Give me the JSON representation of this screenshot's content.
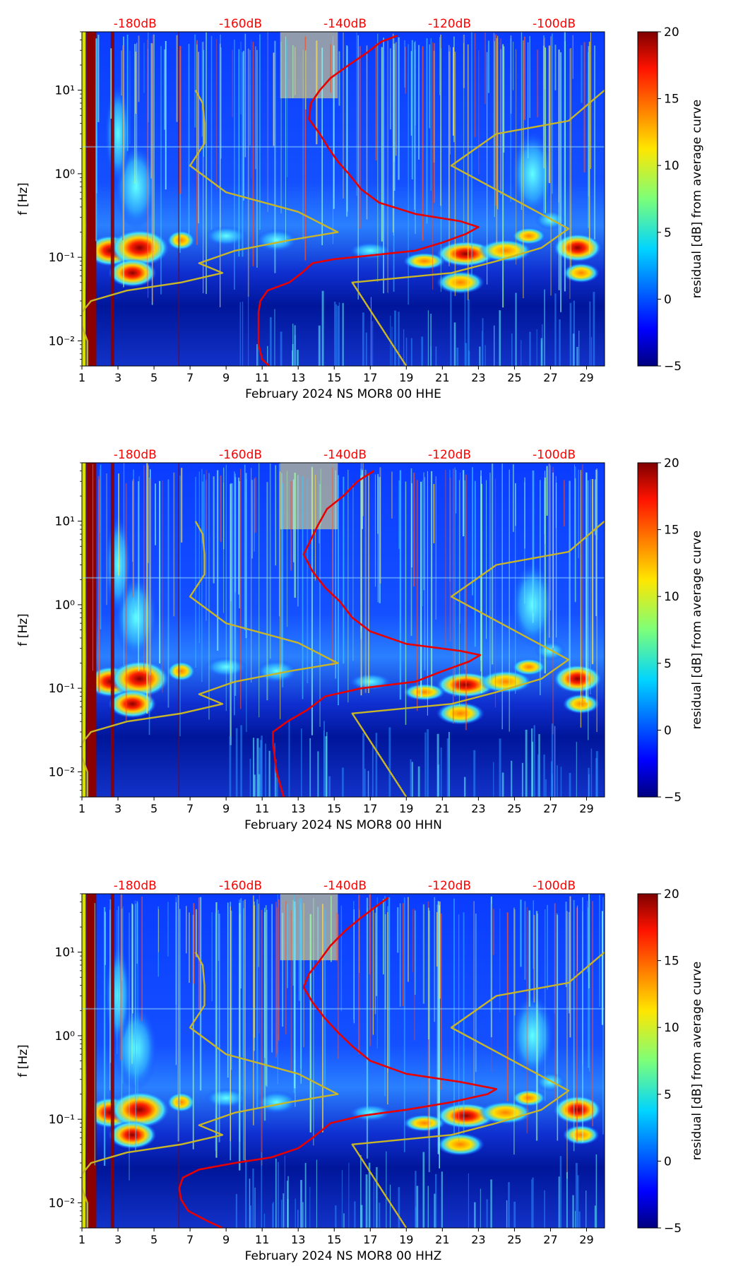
{
  "figure": {
    "colorbar": {
      "label": "residual [dB] from average curve",
      "ticks": [
        -5,
        0,
        5,
        10,
        15,
        20
      ],
      "range": [
        -5,
        20
      ]
    },
    "top_axis": {
      "labels": [
        "-180dB",
        "-160dB",
        "-140dB",
        "-120dB",
        "-100dB"
      ],
      "color": "#ff0000"
    },
    "y_tick_labels": [
      "10⁻²",
      "10⁻¹",
      "10⁰",
      "10¹"
    ],
    "x_tick_labels": [
      "1",
      "3",
      "5",
      "7",
      "9",
      "11",
      "13",
      "15",
      "17",
      "19",
      "21",
      "23",
      "25",
      "27",
      "29"
    ],
    "ylabel": "f [Hz]",
    "colors": {
      "median_curve": "#e80000",
      "noise_model": "#c8b628"
    }
  },
  "chart_data": [
    {
      "type": "heatmap",
      "title": "",
      "xlabel": "February 2024 NS MOR8 00 HHE",
      "ylabel": "f [Hz]",
      "xlim": [
        1,
        30
      ],
      "ylim": [
        0.005,
        50
      ],
      "yscale": "log",
      "colorbar_label": "residual [dB] from average curve",
      "zlim": [
        -5,
        20
      ],
      "series": [
        {
          "name": "median PSD (red)",
          "color": "#e80000",
          "points": [
            [
              11.4,
              0.005
            ],
            [
              11.0,
              0.006
            ],
            [
              10.8,
              0.009
            ],
            [
              10.8,
              0.015
            ],
            [
              10.8,
              0.022
            ],
            [
              10.9,
              0.03
            ],
            [
              11.3,
              0.04
            ],
            [
              12.5,
              0.05
            ],
            [
              13.2,
              0.065
            ],
            [
              13.8,
              0.085
            ],
            [
              15.0,
              0.095
            ],
            [
              17.0,
              0.105
            ],
            [
              19.5,
              0.12
            ],
            [
              21.0,
              0.15
            ],
            [
              22.3,
              0.19
            ],
            [
              23.0,
              0.23
            ],
            [
              22.0,
              0.27
            ],
            [
              19.5,
              0.33
            ],
            [
              17.5,
              0.45
            ],
            [
              16.5,
              0.65
            ],
            [
              15.8,
              1.0
            ],
            [
              15.2,
              1.4
            ],
            [
              14.7,
              2.0
            ],
            [
              14.2,
              3.0
            ],
            [
              13.6,
              4.5
            ],
            [
              13.7,
              7.0
            ],
            [
              14.2,
              10.0
            ],
            [
              14.8,
              14.0
            ],
            [
              15.8,
              20.0
            ],
            [
              16.8,
              28.0
            ],
            [
              17.6,
              38.0
            ],
            [
              18.5,
              45.0
            ]
          ]
        },
        {
          "name": "noise model (yellow)",
          "color": "#c8b628",
          "points": [
            [
              1.3,
              0.005
            ],
            [
              1.3,
              0.01
            ],
            [
              1.0,
              0.015
            ],
            [
              1.0,
              0.022
            ],
            [
              1.5,
              0.03
            ],
            [
              3.5,
              0.04
            ],
            [
              6.5,
              0.05
            ],
            [
              8.8,
              0.065
            ],
            [
              7.5,
              0.085
            ],
            [
              9.5,
              0.12
            ],
            [
              12.5,
              0.16
            ],
            [
              15.2,
              0.2
            ],
            [
              13.0,
              0.35
            ],
            [
              9.0,
              0.6
            ],
            [
              7.0,
              1.25
            ],
            [
              7.8,
              2.3
            ],
            [
              7.8,
              4.0
            ],
            [
              7.7,
              7.0
            ],
            [
              7.3,
              10.0
            ]
          ]
        },
        {
          "name": "noise model right (yellow)",
          "color": "#c8b628",
          "points": [
            [
              19.0,
              0.005
            ],
            [
              16.0,
              0.05
            ],
            [
              21.5,
              0.065
            ],
            [
              24.0,
              0.09
            ],
            [
              26.5,
              0.13
            ],
            [
              28.0,
              0.22
            ],
            [
              21.5,
              1.25
            ],
            [
              24.0,
              3.0
            ],
            [
              28.0,
              4.3
            ],
            [
              30.0,
              10.0
            ]
          ]
        }
      ]
    },
    {
      "type": "heatmap",
      "title": "",
      "xlabel": "February 2024 NS MOR8 00 HHN",
      "ylabel": "f [Hz]",
      "xlim": [
        1,
        30
      ],
      "ylim": [
        0.005,
        50
      ],
      "yscale": "log",
      "colorbar_label": "residual [dB] from average curve",
      "zlim": [
        -5,
        20
      ],
      "series": [
        {
          "name": "median PSD (red)",
          "color": "#e80000",
          "points": [
            [
              12.2,
              0.005
            ],
            [
              12.0,
              0.007
            ],
            [
              11.8,
              0.01
            ],
            [
              11.7,
              0.015
            ],
            [
              11.6,
              0.022
            ],
            [
              11.6,
              0.03
            ],
            [
              12.4,
              0.04
            ],
            [
              13.5,
              0.055
            ],
            [
              14.5,
              0.08
            ],
            [
              16.5,
              0.1
            ],
            [
              19.5,
              0.12
            ],
            [
              21.0,
              0.16
            ],
            [
              22.5,
              0.21
            ],
            [
              23.1,
              0.25
            ],
            [
              22.0,
              0.28
            ],
            [
              19.0,
              0.34
            ],
            [
              17.0,
              0.48
            ],
            [
              16.0,
              0.7
            ],
            [
              15.3,
              1.1
            ],
            [
              14.5,
              1.6
            ],
            [
              13.8,
              2.5
            ],
            [
              13.3,
              4.0
            ],
            [
              13.7,
              6.0
            ],
            [
              14.1,
              9.0
            ],
            [
              14.6,
              14.0
            ],
            [
              15.5,
              20.0
            ],
            [
              16.3,
              30.0
            ],
            [
              17.2,
              40.0
            ]
          ]
        },
        {
          "name": "noise model (yellow)",
          "color": "#c8b628",
          "points": [
            [
              1.3,
              0.005
            ],
            [
              1.3,
              0.01
            ],
            [
              1.0,
              0.015
            ],
            [
              1.0,
              0.022
            ],
            [
              1.5,
              0.03
            ],
            [
              3.5,
              0.04
            ],
            [
              6.5,
              0.05
            ],
            [
              8.8,
              0.065
            ],
            [
              7.5,
              0.085
            ],
            [
              9.5,
              0.12
            ],
            [
              12.5,
              0.16
            ],
            [
              15.2,
              0.2
            ],
            [
              13.0,
              0.35
            ],
            [
              9.0,
              0.6
            ],
            [
              7.0,
              1.25
            ],
            [
              7.8,
              2.3
            ],
            [
              7.8,
              4.0
            ],
            [
              7.7,
              7.0
            ],
            [
              7.3,
              10.0
            ]
          ]
        },
        {
          "name": "noise model right (yellow)",
          "color": "#c8b628",
          "points": [
            [
              19.0,
              0.005
            ],
            [
              16.0,
              0.05
            ],
            [
              21.5,
              0.065
            ],
            [
              24.0,
              0.09
            ],
            [
              26.5,
              0.13
            ],
            [
              28.0,
              0.22
            ],
            [
              21.5,
              1.25
            ],
            [
              24.0,
              3.0
            ],
            [
              28.0,
              4.3
            ],
            [
              30.0,
              10.0
            ]
          ]
        }
      ]
    },
    {
      "type": "heatmap",
      "title": "",
      "xlabel": "February 2024 NS MOR8 00 HHZ",
      "ylabel": "f [Hz]",
      "xlim": [
        1,
        30
      ],
      "ylim": [
        0.005,
        50
      ],
      "yscale": "log",
      "colorbar_label": "residual [dB] from average curve",
      "zlim": [
        -5,
        20
      ],
      "series": [
        {
          "name": "median PSD (red)",
          "color": "#e80000",
          "points": [
            [
              8.8,
              0.005
            ],
            [
              8.0,
              0.006
            ],
            [
              6.9,
              0.008
            ],
            [
              6.5,
              0.011
            ],
            [
              6.4,
              0.015
            ],
            [
              6.6,
              0.02
            ],
            [
              7.5,
              0.025
            ],
            [
              9.5,
              0.03
            ],
            [
              11.5,
              0.035
            ],
            [
              13.0,
              0.045
            ],
            [
              13.8,
              0.06
            ],
            [
              14.8,
              0.09
            ],
            [
              16.5,
              0.11
            ],
            [
              19.0,
              0.13
            ],
            [
              21.5,
              0.16
            ],
            [
              23.5,
              0.2
            ],
            [
              24.0,
              0.23
            ],
            [
              22.0,
              0.28
            ],
            [
              19.0,
              0.35
            ],
            [
              17.0,
              0.5
            ],
            [
              16.0,
              0.75
            ],
            [
              15.2,
              1.1
            ],
            [
              14.5,
              1.6
            ],
            [
              13.8,
              2.5
            ],
            [
              13.3,
              3.8
            ],
            [
              13.6,
              5.5
            ],
            [
              14.2,
              8.0
            ],
            [
              14.8,
              12.0
            ],
            [
              15.6,
              18.0
            ],
            [
              16.4,
              25.0
            ],
            [
              17.3,
              35.0
            ],
            [
              18.0,
              45.0
            ]
          ]
        },
        {
          "name": "noise model (yellow)",
          "color": "#c8b628",
          "points": [
            [
              1.3,
              0.005
            ],
            [
              1.3,
              0.01
            ],
            [
              1.0,
              0.015
            ],
            [
              1.0,
              0.022
            ],
            [
              1.5,
              0.03
            ],
            [
              3.5,
              0.04
            ],
            [
              6.5,
              0.05
            ],
            [
              8.8,
              0.065
            ],
            [
              7.5,
              0.085
            ],
            [
              9.5,
              0.12
            ],
            [
              12.5,
              0.16
            ],
            [
              15.2,
              0.2
            ],
            [
              13.0,
              0.35
            ],
            [
              9.0,
              0.6
            ],
            [
              7.0,
              1.25
            ],
            [
              7.8,
              2.3
            ],
            [
              7.8,
              4.0
            ],
            [
              7.7,
              7.0
            ],
            [
              7.3,
              10.0
            ]
          ]
        },
        {
          "name": "noise model right (yellow)",
          "color": "#c8b628",
          "points": [
            [
              19.0,
              0.005
            ],
            [
              16.0,
              0.05
            ],
            [
              21.5,
              0.065
            ],
            [
              24.0,
              0.09
            ],
            [
              26.5,
              0.13
            ],
            [
              28.0,
              0.22
            ],
            [
              21.5,
              1.25
            ],
            [
              24.0,
              3.0
            ],
            [
              28.0,
              4.3
            ],
            [
              30.0,
              10.0
            ]
          ]
        }
      ]
    }
  ]
}
